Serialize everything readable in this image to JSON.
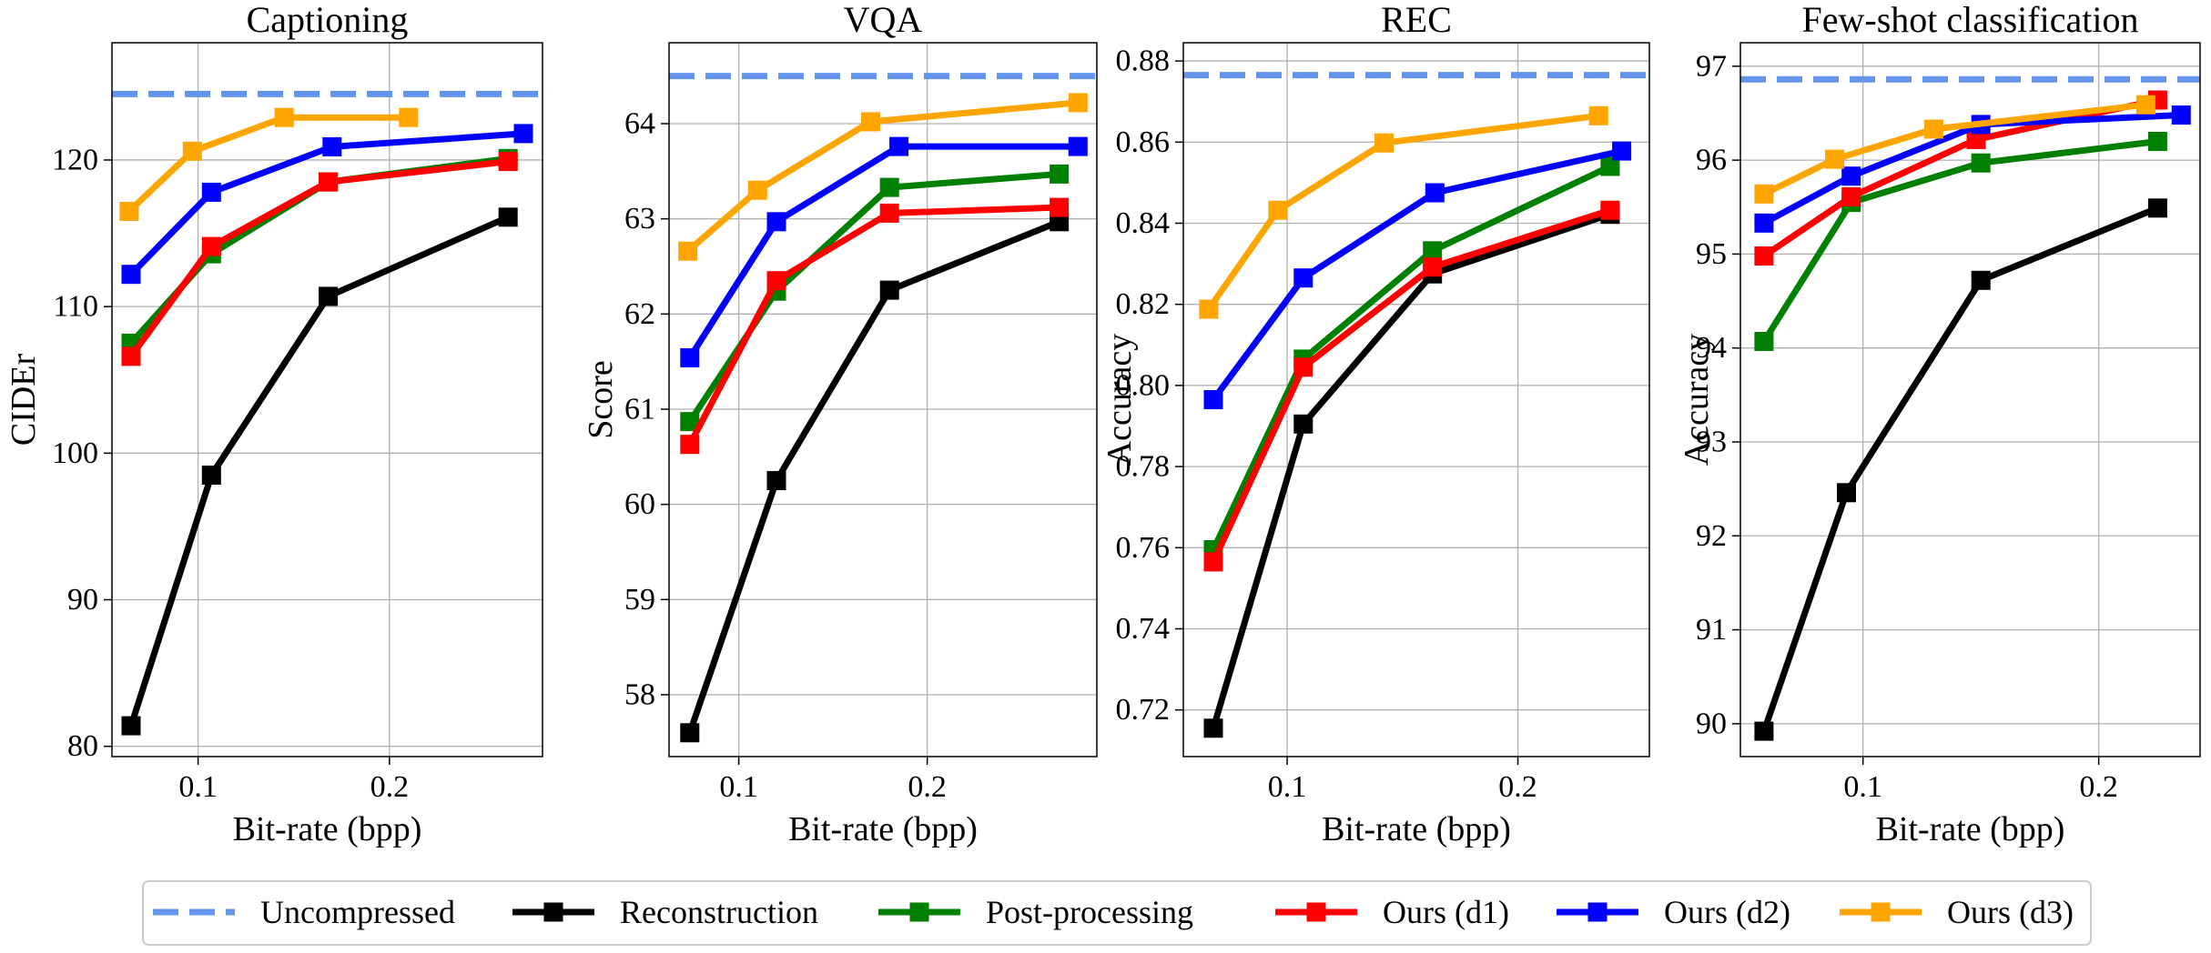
{
  "chart_data": [
    {
      "type": "line",
      "title": "Captioning",
      "xlabel": "Bit-rate (bpp)",
      "ylabel": "CIDEr",
      "xlim": [
        0.055,
        0.28
      ],
      "ylim": [
        79.3,
        128.0
      ],
      "xticks": [
        0.1,
        0.2
      ],
      "xtick_labels": [
        "0.1",
        "0.2"
      ],
      "yticks": [
        80,
        90,
        100,
        110,
        120
      ],
      "ytick_labels": [
        "80",
        "90",
        "100",
        "110",
        "120"
      ],
      "grid": true,
      "baseline": {
        "name": "Uncompressed",
        "value": 124.5
      },
      "series": [
        {
          "name": "Reconstruction",
          "x": [
            0.065,
            0.107,
            0.168,
            0.262
          ],
          "y": [
            81.4,
            98.5,
            110.7,
            116.1
          ]
        },
        {
          "name": "Post-processing",
          "x": [
            0.065,
            0.107,
            0.168,
            0.262
          ],
          "y": [
            107.5,
            113.6,
            118.5,
            120.1
          ]
        },
        {
          "name": "Ours (d1)",
          "x": [
            0.065,
            0.107,
            0.168,
            0.262
          ],
          "y": [
            106.6,
            114.1,
            118.5,
            119.9
          ]
        },
        {
          "name": "Ours (d2)",
          "x": [
            0.065,
            0.107,
            0.17,
            0.27
          ],
          "y": [
            112.2,
            117.8,
            120.9,
            121.8
          ]
        },
        {
          "name": "Ours (d3)",
          "x": [
            0.064,
            0.097,
            0.145,
            0.21
          ],
          "y": [
            116.5,
            120.6,
            122.9,
            122.9
          ]
        }
      ]
    },
    {
      "type": "line",
      "title": "VQA",
      "xlabel": "Bit-rate (bpp)",
      "ylabel": "Score",
      "xlim": [
        0.063,
        0.29
      ],
      "ylim": [
        57.35,
        64.85
      ],
      "xticks": [
        0.1,
        0.2
      ],
      "xtick_labels": [
        "0.1",
        "0.2"
      ],
      "yticks": [
        58,
        59,
        60,
        61,
        62,
        63,
        64
      ],
      "ytick_labels": [
        "58",
        "59",
        "60",
        "61",
        "62",
        "63",
        "64"
      ],
      "grid": true,
      "baseline": {
        "name": "Uncompressed",
        "value": 64.5
      },
      "series": [
        {
          "name": "Reconstruction",
          "x": [
            0.074,
            0.12,
            0.18,
            0.27
          ],
          "y": [
            57.6,
            60.25,
            62.25,
            62.97
          ]
        },
        {
          "name": "Post-processing",
          "x": [
            0.074,
            0.12,
            0.18,
            0.27
          ],
          "y": [
            60.87,
            62.24,
            63.33,
            63.47
          ]
        },
        {
          "name": "Ours (d1)",
          "x": [
            0.074,
            0.12,
            0.18,
            0.27
          ],
          "y": [
            60.63,
            62.35,
            63.06,
            63.12
          ]
        },
        {
          "name": "Ours (d2)",
          "x": [
            0.074,
            0.12,
            0.185,
            0.28
          ],
          "y": [
            61.54,
            62.97,
            63.76,
            63.76
          ]
        },
        {
          "name": "Ours (d3)",
          "x": [
            0.073,
            0.11,
            0.17,
            0.28
          ],
          "y": [
            62.66,
            63.3,
            64.02,
            64.22
          ]
        }
      ]
    },
    {
      "type": "line",
      "title": "REC",
      "xlabel": "Bit-rate (bpp)",
      "ylabel": "Accuracy",
      "xlim": [
        0.055,
        0.257
      ],
      "ylim": [
        0.7085,
        0.8845
      ],
      "xticks": [
        0.1,
        0.2
      ],
      "xtick_labels": [
        "0.1",
        "0.2"
      ],
      "yticks": [
        0.72,
        0.74,
        0.76,
        0.78,
        0.8,
        0.82,
        0.84,
        0.86,
        0.88
      ],
      "ytick_labels": [
        "0.72",
        "0.74",
        "0.76",
        "0.78",
        "0.80",
        "0.82",
        "0.84",
        "0.86",
        "0.88"
      ],
      "grid": true,
      "baseline": {
        "name": "Uncompressed",
        "value": 0.8765
      },
      "series": [
        {
          "name": "Reconstruction",
          "x": [
            0.068,
            0.107,
            0.163,
            0.24
          ],
          "y": [
            0.7155,
            0.7905,
            0.8275,
            0.8422
          ]
        },
        {
          "name": "Post-processing",
          "x": [
            0.068,
            0.107,
            0.163,
            0.24
          ],
          "y": [
            0.7595,
            0.8065,
            0.8332,
            0.854
          ]
        },
        {
          "name": "Ours (d1)",
          "x": [
            0.068,
            0.107,
            0.163,
            0.24
          ],
          "y": [
            0.7565,
            0.8045,
            0.8292,
            0.8432
          ]
        },
        {
          "name": "Ours (d2)",
          "x": [
            0.068,
            0.107,
            0.164,
            0.245
          ],
          "y": [
            0.7965,
            0.8265,
            0.8475,
            0.8578
          ]
        },
        {
          "name": "Ours (d3)",
          "x": [
            0.066,
            0.096,
            0.142,
            0.235
          ],
          "y": [
            0.8188,
            0.8432,
            0.8598,
            0.8665
          ]
        }
      ]
    },
    {
      "type": "line",
      "title": "Few-shot classification",
      "xlabel": "Bit-rate (bpp)",
      "ylabel": "Accuracy",
      "xlim": [
        0.048,
        0.243
      ],
      "ylim": [
        89.65,
        97.25
      ],
      "xticks": [
        0.1,
        0.2
      ],
      "xtick_labels": [
        "0.1",
        "0.2"
      ],
      "yticks": [
        90,
        91,
        92,
        93,
        94,
        95,
        96,
        97
      ],
      "ytick_labels": [
        "90",
        "91",
        "92",
        "93",
        "94",
        "95",
        "96",
        "97"
      ],
      "grid": true,
      "baseline": {
        "name": "Uncompressed",
        "value": 96.86
      },
      "series": [
        {
          "name": "Reconstruction",
          "x": [
            0.058,
            0.093,
            0.15,
            0.225
          ],
          "y": [
            89.92,
            92.46,
            94.72,
            95.49
          ]
        },
        {
          "name": "Post-processing",
          "x": [
            0.058,
            0.095,
            0.15,
            0.225
          ],
          "y": [
            94.07,
            95.55,
            95.97,
            96.2
          ]
        },
        {
          "name": "Ours (d1)",
          "x": [
            0.058,
            0.095,
            0.148,
            0.225
          ],
          "y": [
            94.98,
            95.61,
            96.22,
            96.64
          ]
        },
        {
          "name": "Ours (d2)",
          "x": [
            0.058,
            0.095,
            0.15,
            0.235
          ],
          "y": [
            95.33,
            95.83,
            96.38,
            96.48
          ]
        },
        {
          "name": "Ours (d3)",
          "x": [
            0.058,
            0.088,
            0.13,
            0.22
          ],
          "y": [
            95.64,
            96.01,
            96.33,
            96.59
          ]
        }
      ]
    }
  ],
  "legend": {
    "placement": "bottom-center",
    "entries": [
      {
        "name": "Uncompressed",
        "style": "dashed"
      },
      {
        "name": "Reconstruction",
        "style": "line-square"
      },
      {
        "name": "Post-processing",
        "style": "line-square"
      },
      {
        "name": "Ours (d1)",
        "style": "line-square"
      },
      {
        "name": "Ours (d2)",
        "style": "line-square"
      },
      {
        "name": "Ours (d3)",
        "style": "line-square"
      }
    ]
  },
  "colors": {
    "Uncompressed": "#6495ed",
    "Reconstruction": "#000000",
    "Post-processing": "#008000",
    "Ours (d1)": "#ff0000",
    "Ours (d2)": "#0000ff",
    "Ours (d3)": "#ffa500"
  }
}
